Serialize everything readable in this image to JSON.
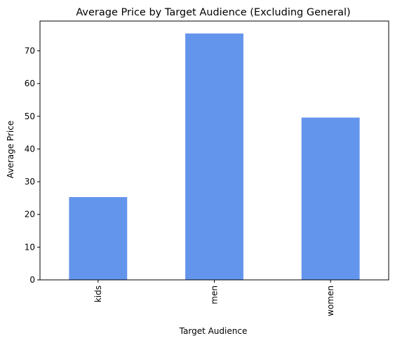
{
  "chart_data": {
    "type": "bar",
    "title": "Average Price by Target Audience (Excluding General)",
    "xlabel": "Target Audience",
    "ylabel": "Average Price",
    "categories": [
      "kids",
      "men",
      "women"
    ],
    "values": [
      25.3,
      75.3,
      49.6
    ],
    "ylim": [
      0,
      79.1
    ],
    "yticks": [
      0,
      10,
      20,
      30,
      40,
      50,
      60,
      70
    ],
    "grid": false,
    "bar_color": "#6495ED"
  }
}
